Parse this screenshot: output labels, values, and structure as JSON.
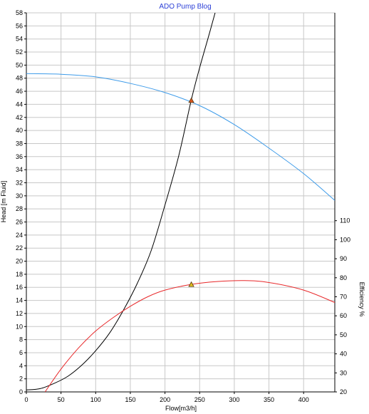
{
  "chart_data": {
    "type": "line",
    "title": "ADO Pump Blog",
    "xlabel": "Flow[m3/h]",
    "ylabel": "Head [m Fluid]",
    "y2label": "Efficiency %",
    "xlim": [
      0,
      445
    ],
    "ylim": [
      0,
      58
    ],
    "y2lim": [
      20,
      120
    ],
    "x_ticks": [
      0,
      50,
      100,
      150,
      200,
      250,
      300,
      350,
      400
    ],
    "y_ticks": [
      0,
      2,
      4,
      6,
      8,
      10,
      12,
      14,
      16,
      18,
      20,
      22,
      24,
      26,
      28,
      30,
      32,
      34,
      36,
      38,
      40,
      42,
      44,
      46,
      48,
      50,
      52,
      54,
      56,
      58
    ],
    "y2_ticks": [
      20,
      30,
      40,
      50,
      60,
      70,
      80,
      90,
      100,
      110
    ],
    "grid": true,
    "colors": {
      "pump_curve": "#3d9be9",
      "system_curve": "#000000",
      "efficiency_curve": "#e8282a",
      "operating_marker": "#d9541e",
      "efficiency_marker": "#e0c020",
      "title": "#2a3ed6"
    },
    "series": [
      {
        "key": "pump_curve",
        "axis": "left",
        "x": [
          0,
          50,
          100,
          150,
          200,
          250,
          300,
          350,
          400,
          445
        ],
        "y": [
          48.7,
          48.6,
          48.2,
          47.2,
          45.8,
          43.8,
          40.9,
          37.3,
          33.4,
          29.3
        ]
      },
      {
        "key": "system_curve",
        "axis": "left",
        "x": [
          0,
          20,
          40,
          60,
          80,
          100,
          120,
          140,
          160,
          180,
          200,
          220,
          238,
          250,
          265,
          280
        ],
        "y": [
          0.3,
          0.5,
          1.3,
          2.4,
          4.1,
          6.3,
          9.0,
          12.5,
          16.6,
          21.6,
          28.6,
          36.2,
          44.7,
          49.6,
          55.2,
          61.0
        ]
      },
      {
        "key": "efficiency_curve",
        "axis": "right",
        "x": [
          27,
          50,
          75,
          100,
          125,
          150,
          175,
          200,
          238,
          275,
          315,
          350,
          400,
          445
        ],
        "y": [
          20,
          32,
          43,
          52,
          59,
          65,
          70,
          73.5,
          76.5,
          78,
          78.5,
          77.5,
          73.5,
          67
        ]
      }
    ],
    "markers": [
      {
        "key": "operating_marker",
        "axis": "left",
        "x": 238,
        "y": 44.6
      },
      {
        "key": "efficiency_marker",
        "axis": "right",
        "x": 238,
        "y": 76.5
      }
    ]
  }
}
